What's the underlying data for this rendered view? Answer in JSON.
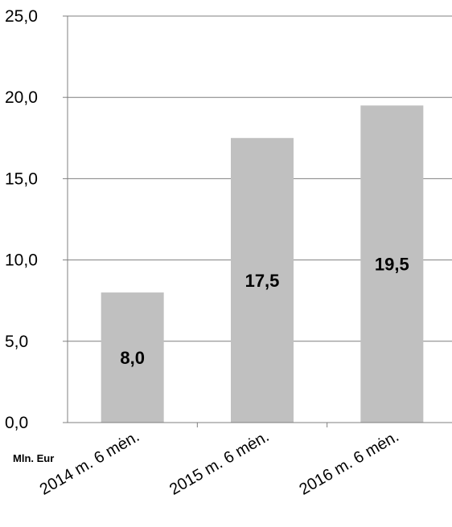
{
  "chart_data": {
    "type": "bar",
    "categories": [
      "2014 m. 6 mėn.",
      "2015 m. 6 mėn.",
      "2016 m. 6 mėn."
    ],
    "values": [
      8.0,
      17.5,
      19.5
    ],
    "data_labels": [
      "8,0",
      "17,5",
      "19,5"
    ],
    "ylim": [
      0,
      25
    ],
    "yticks": [
      0,
      5,
      10,
      15,
      20,
      25
    ],
    "ytick_labels": [
      "0,0",
      "5,0",
      "10,0",
      "15,0",
      "20,0",
      "25,0"
    ],
    "ylabel": "Mln. Eur",
    "grid": true,
    "legend": "none",
    "bar_color": "#c0c0c0",
    "grid_color": "#7f7f7f"
  }
}
